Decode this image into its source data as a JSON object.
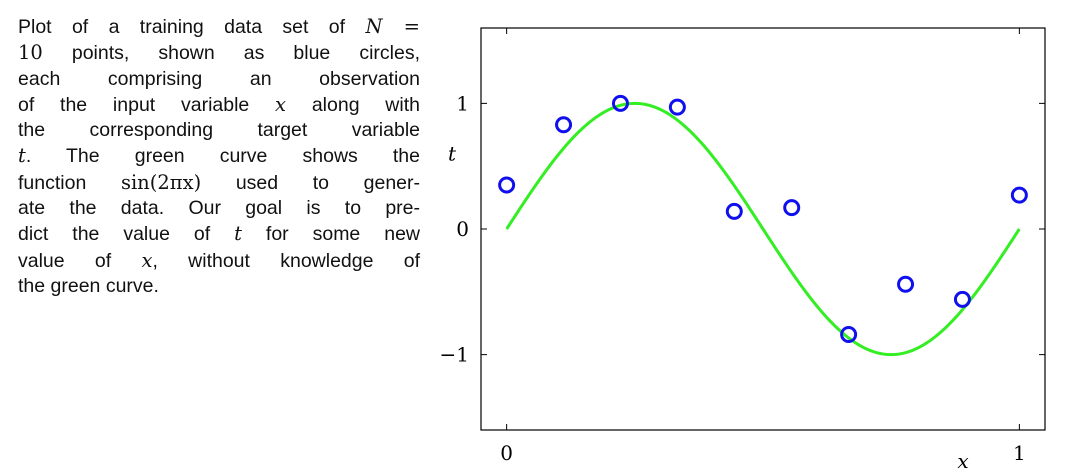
{
  "caption": {
    "l1a": "Plot of a training data set of ",
    "l1var": "N",
    "l1b": " =",
    "l2num": "10",
    "l2b": " points, shown as blue circles,",
    "l3": "each comprising an observation",
    "l4a": "of the input variable ",
    "l4var": "x",
    "l4b": " along with",
    "l5": "the corresponding target variable",
    "l6var": "t",
    "l6b": ".  The green curve shows the",
    "l7a": "function ",
    "l7fn": "sin(2πx)",
    "l7b": " used to gener-",
    "l8": "ate the data.  Our goal is to pre-",
    "l9a": "dict the value of ",
    "l9var": "t",
    "l9b": " for some new",
    "l10a": "value of ",
    "l10var": "x",
    "l10b": ", without knowledge of",
    "l11": "the green curve."
  },
  "colors": {
    "curve": "#33ee22",
    "points": "#1010ee",
    "axes": "#000000"
  },
  "chart_data": {
    "type": "scatter",
    "xlabel": "x",
    "ylabel": "t",
    "xlim": [
      -0.05,
      1.05
    ],
    "ylim": [
      -1.6,
      1.6
    ],
    "x_ticks": [
      0,
      1
    ],
    "x_tick_labels": [
      "0",
      "1"
    ],
    "y_ticks": [
      -1,
      0,
      1
    ],
    "y_tick_labels": [
      "−1",
      "0",
      "1"
    ],
    "grid": false,
    "series": [
      {
        "type": "scatter",
        "marker": "open-circle",
        "color": "#1010ee",
        "x": [
          0.0,
          0.111,
          0.222,
          0.333,
          0.444,
          0.556,
          0.667,
          0.778,
          0.889,
          1.0
        ],
        "y": [
          0.35,
          0.83,
          1.0,
          0.97,
          0.14,
          0.17,
          -0.84,
          -0.44,
          -0.56,
          0.27
        ]
      },
      {
        "type": "line",
        "function": "sin(2πx)",
        "color": "#33ee22",
        "x_range": [
          0,
          1
        ]
      }
    ]
  }
}
